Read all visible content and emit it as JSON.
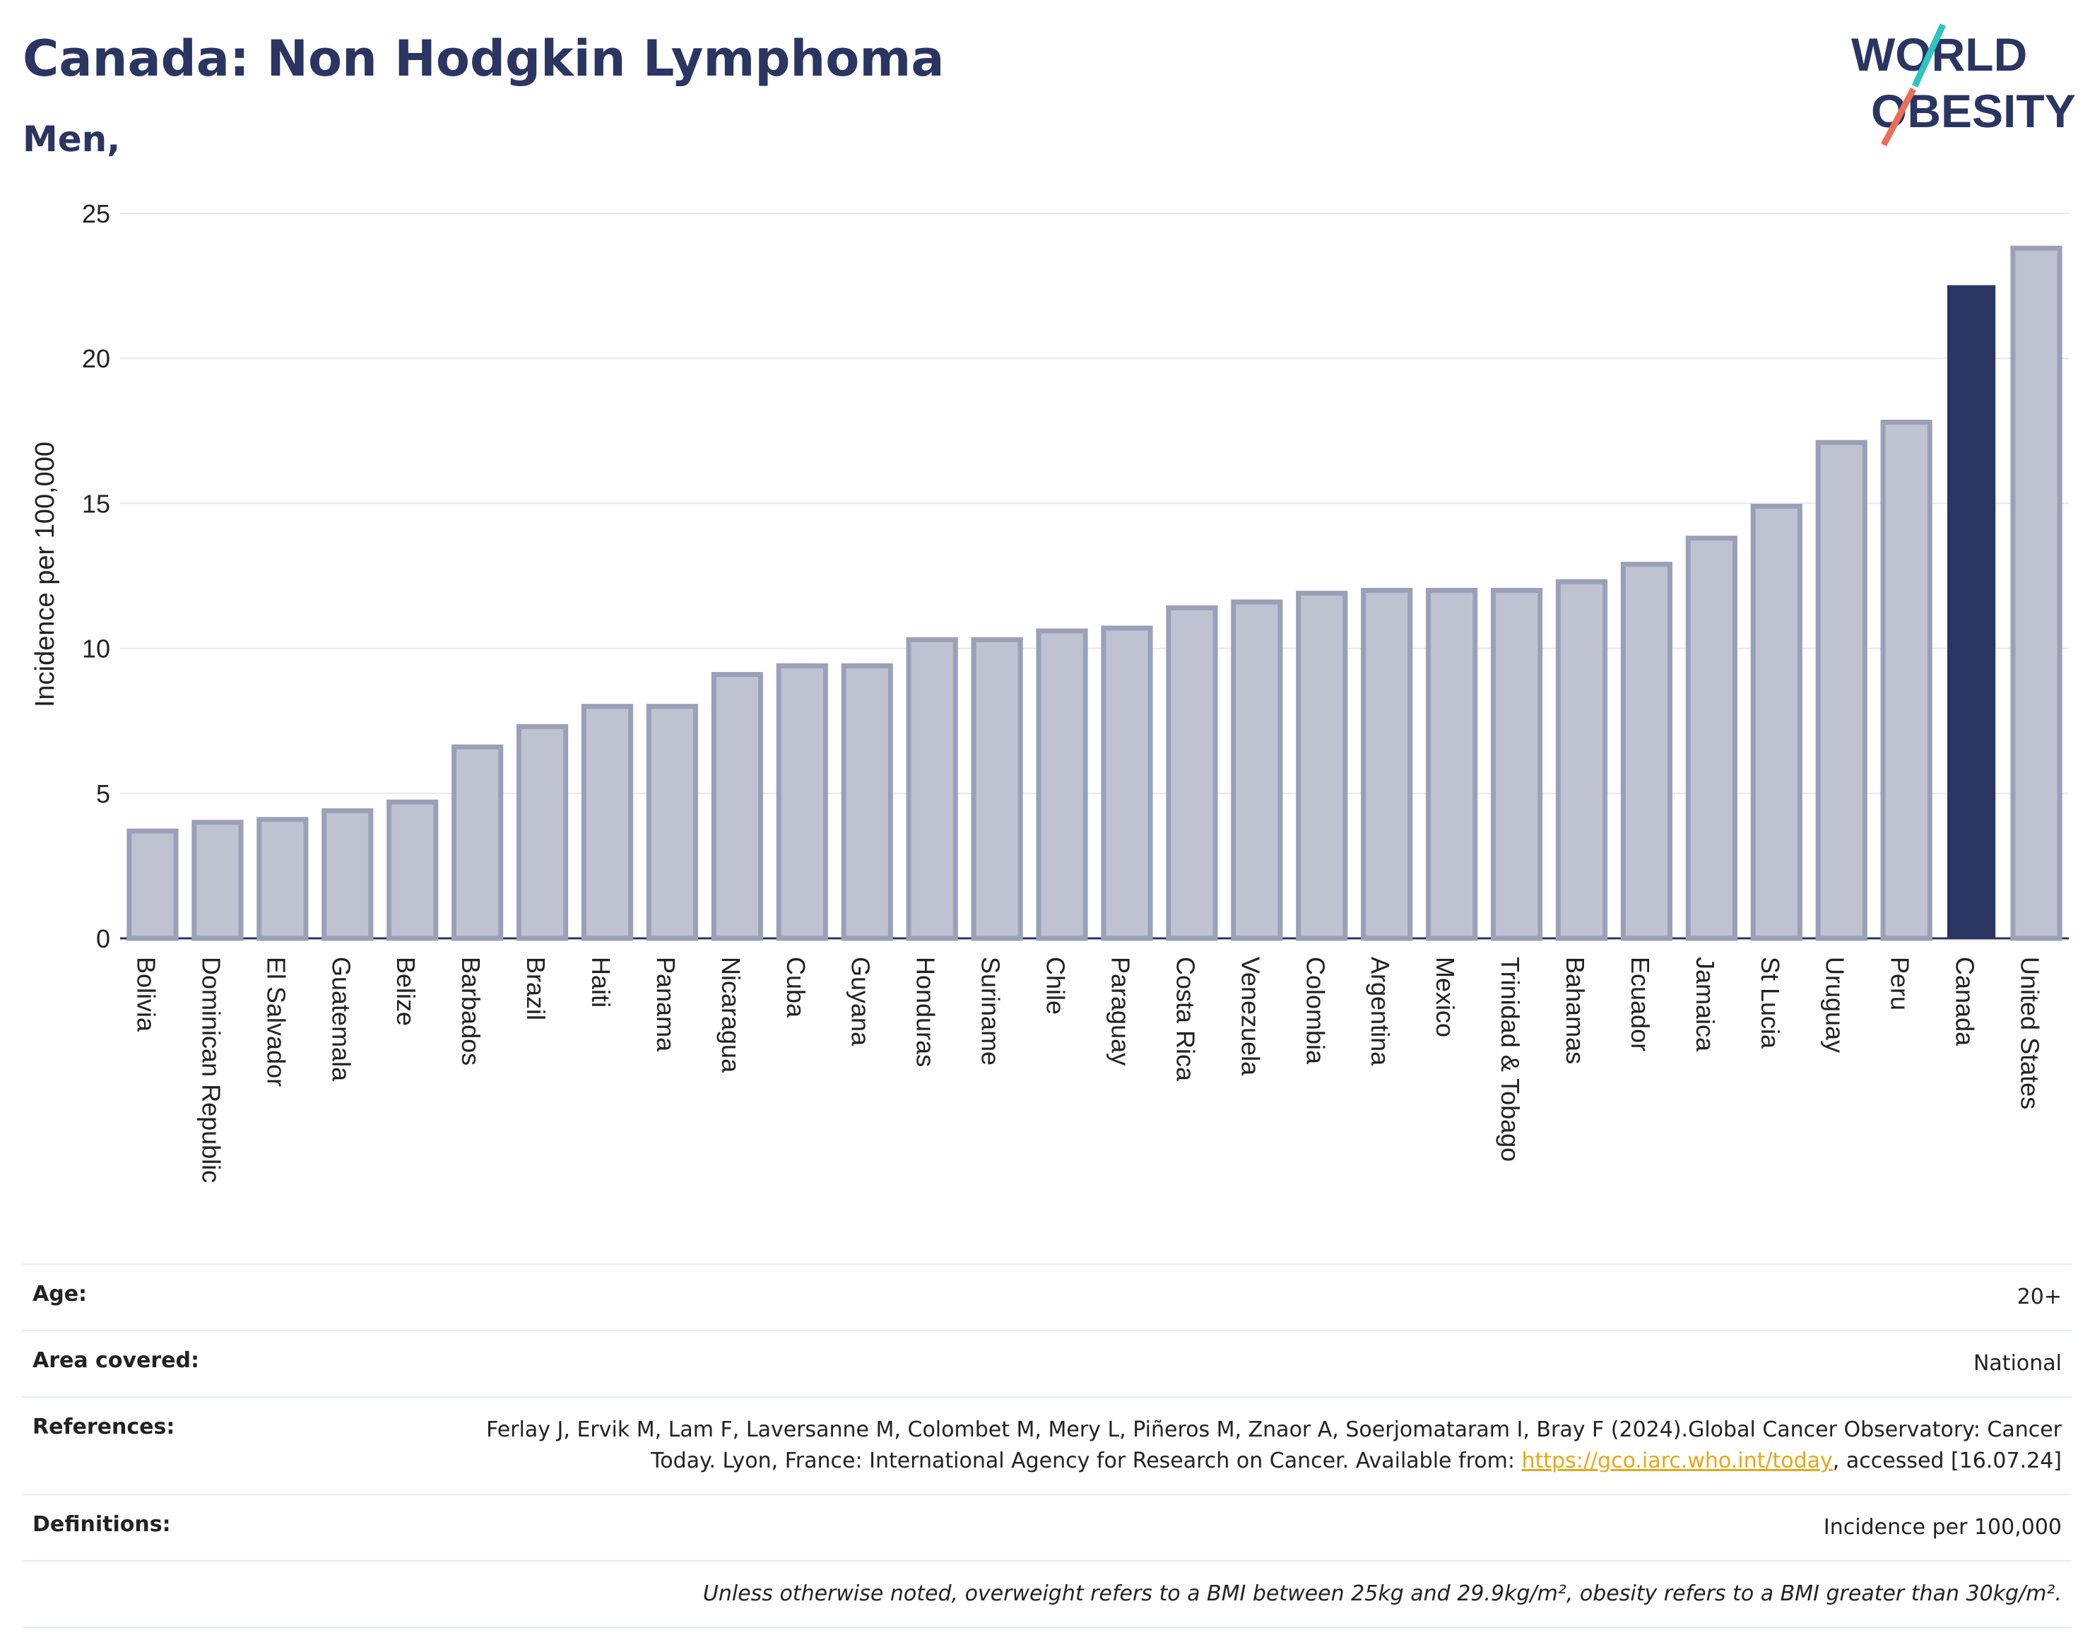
{
  "header": {
    "title": "Canada: Non Hodgkin Lymphoma",
    "subtitle": "Men, ",
    "logo_line1": "WORLD",
    "logo_line2": "OBESITY"
  },
  "colors": {
    "highlight": "#2a3562",
    "bar_fill": "#bfc3d1",
    "bar_stroke": "#9aa0b8",
    "logo_teal": "#2ec4c0",
    "logo_coral": "#e8705a"
  },
  "chart_data": {
    "type": "bar",
    "ylabel": "Incidence per 100,000",
    "ylim": [
      0,
      25
    ],
    "yticks": [
      0,
      5,
      10,
      15,
      20,
      25
    ],
    "grid": true,
    "highlight": "Canada",
    "categories": [
      "Bolivia",
      "Dominican Republic",
      "El Salvador",
      "Guatemala",
      "Belize",
      "Barbados",
      "Brazil",
      "Haiti",
      "Panama",
      "Nicaragua",
      "Cuba",
      "Guyana",
      "Honduras",
      "Suriname",
      "Chile",
      "Paraguay",
      "Costa Rica",
      "Venezuela",
      "Colombia",
      "Argentina",
      "Mexico",
      "Trinidad & Tobago",
      "Bahamas",
      "Ecuador",
      "Jamaica",
      "St Lucia",
      "Uruguay",
      "Peru",
      "Canada",
      "United States"
    ],
    "values": [
      3.7,
      4.0,
      4.1,
      4.4,
      4.7,
      6.6,
      7.3,
      8.0,
      8.0,
      9.1,
      9.4,
      9.4,
      10.3,
      10.3,
      10.6,
      10.7,
      11.4,
      11.6,
      11.9,
      12.0,
      12.0,
      12.0,
      12.3,
      12.9,
      13.8,
      14.9,
      17.1,
      17.8,
      22.5,
      23.8
    ]
  },
  "info": {
    "age_label": "Age:",
    "age_value": "20+",
    "area_label": "Area covered:",
    "area_value": "National",
    "references_label": "References:",
    "references_text": "Ferlay J, Ervik M, Lam F, Laversanne M, Colombet M, Mery L, Piñeros M, Znaor A, Soerjomataram I, Bray F (2024).Global Cancer Observatory: Cancer Today. Lyon, France: International Agency for Research on Cancer. Available from: ",
    "references_link": "https://gco.iarc.who.int/today",
    "references_tail": ", accessed [16.07.24]",
    "definitions_label": "Definitions:",
    "definitions_value": "Incidence per 100,000",
    "note": "Unless otherwise noted, overweight refers to a BMI between 25kg and 29.9kg/m², obesity refers to a BMI greater than 30kg/m²."
  }
}
